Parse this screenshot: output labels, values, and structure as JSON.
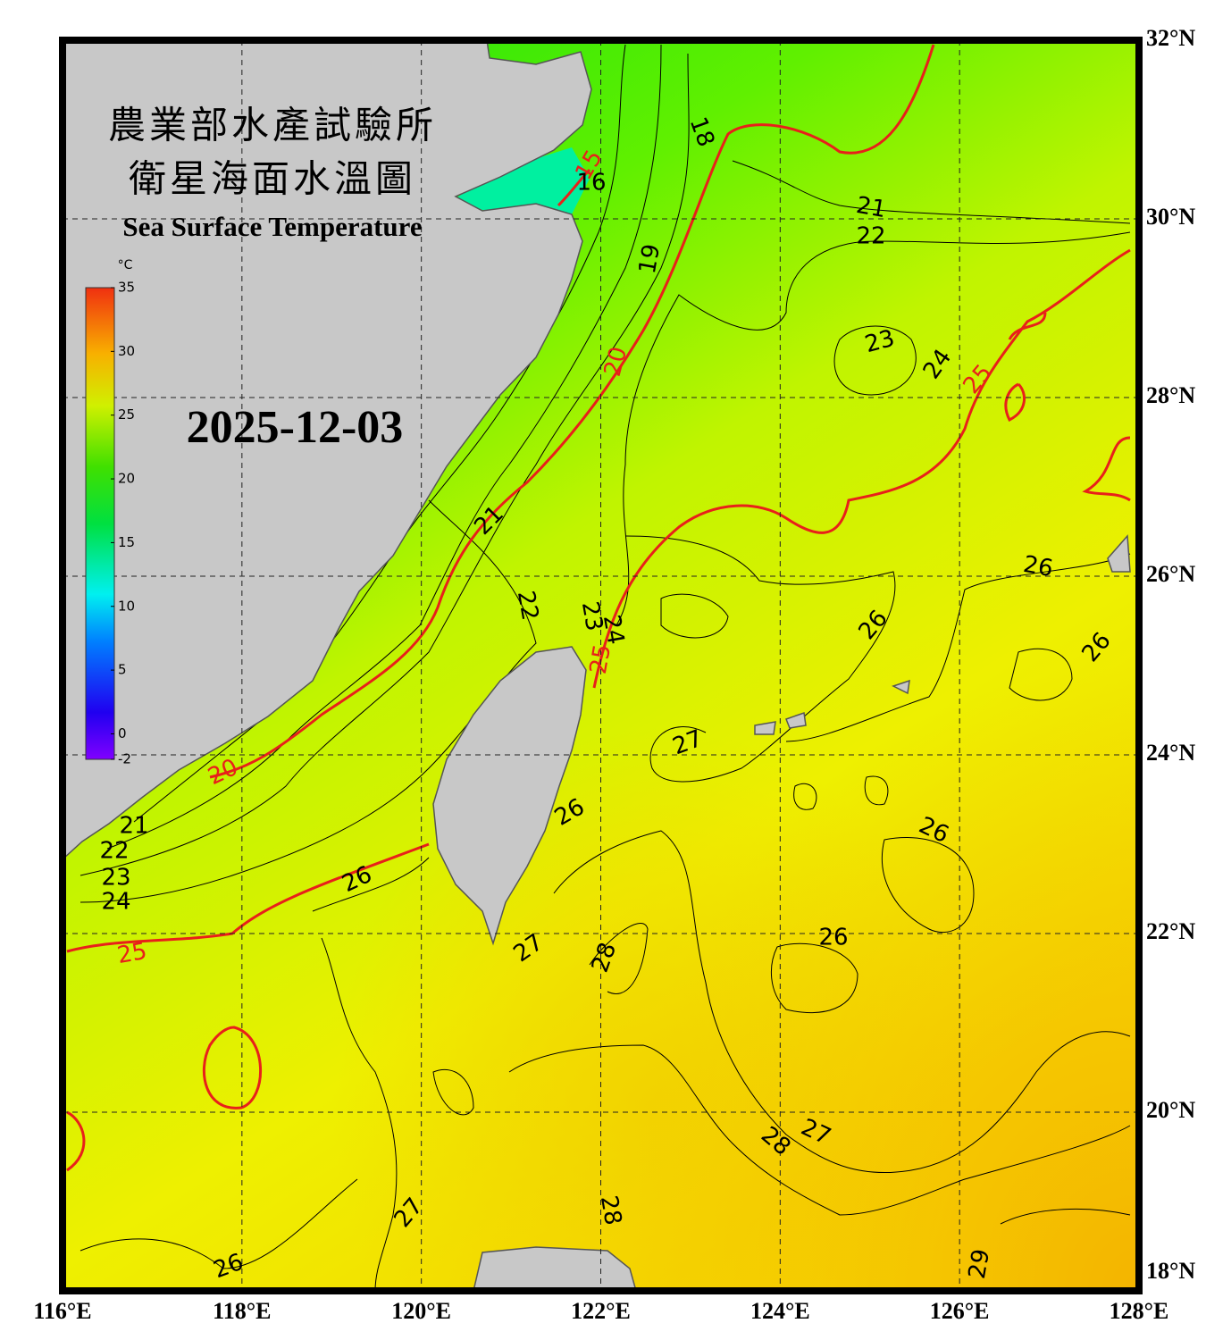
{
  "map": {
    "title_zh_1": "農業部水產試驗所",
    "title_zh_2": "衛星海面水溫圖",
    "title_en": "Sea Surface Temperature",
    "date": "2025-12-03",
    "colorbar": {
      "unit": "°C",
      "range": [
        -2,
        35
      ],
      "ticks": [
        35,
        30,
        25,
        20,
        15,
        10,
        5,
        0,
        -2
      ]
    },
    "lon_range": [
      116,
      128
    ],
    "lat_range": [
      18,
      32
    ],
    "lon_ticks": [
      {
        "value": 116,
        "label": "116°E"
      },
      {
        "value": 118,
        "label": "118°E"
      },
      {
        "value": 120,
        "label": "120°E"
      },
      {
        "value": 122,
        "label": "122°E"
      },
      {
        "value": 124,
        "label": "124°E"
      },
      {
        "value": 126,
        "label": "126°E"
      },
      {
        "value": 128,
        "label": "128°E"
      }
    ],
    "lat_ticks": [
      {
        "value": 32,
        "label": "32°N"
      },
      {
        "value": 30,
        "label": "30°N"
      },
      {
        "value": 28,
        "label": "28°N"
      },
      {
        "value": 26,
        "label": "26°N"
      },
      {
        "value": 24,
        "label": "24°N"
      },
      {
        "value": 22,
        "label": "22°N"
      },
      {
        "value": 20,
        "label": "20°N"
      },
      {
        "value": 18,
        "label": "18°N"
      }
    ],
    "contour_labels": [
      15,
      16,
      18,
      19,
      20,
      21,
      22,
      23,
      24,
      25,
      21,
      22,
      23,
      24,
      25,
      26,
      26,
      26,
      27,
      20,
      21,
      22,
      23,
      24,
      26,
      26,
      26,
      26,
      25,
      27,
      28,
      28,
      27,
      27,
      28,
      26,
      29
    ]
  }
}
